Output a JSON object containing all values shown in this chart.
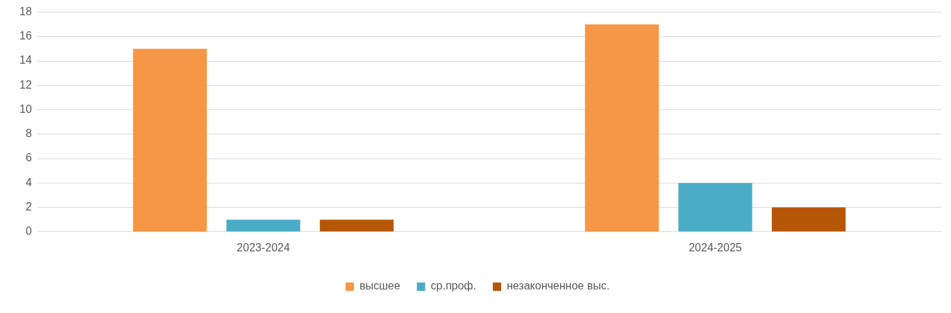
{
  "chart_data": {
    "type": "bar",
    "categories": [
      "2023-2024",
      "2024-2025"
    ],
    "series": [
      {
        "name": "высшее",
        "color": "#f79646",
        "values": [
          15,
          17
        ]
      },
      {
        "name": "ср.проф.",
        "color": "#4bacc6",
        "values": [
          1,
          4
        ]
      },
      {
        "name": "незаконченное выс.",
        "color": "#b65708",
        "values": [
          1,
          2
        ]
      }
    ],
    "ylim": [
      0,
      18
    ],
    "yticks": [
      0,
      2,
      4,
      6,
      8,
      10,
      12,
      14,
      16,
      18
    ],
    "grid": "y",
    "legend": "bottom"
  }
}
